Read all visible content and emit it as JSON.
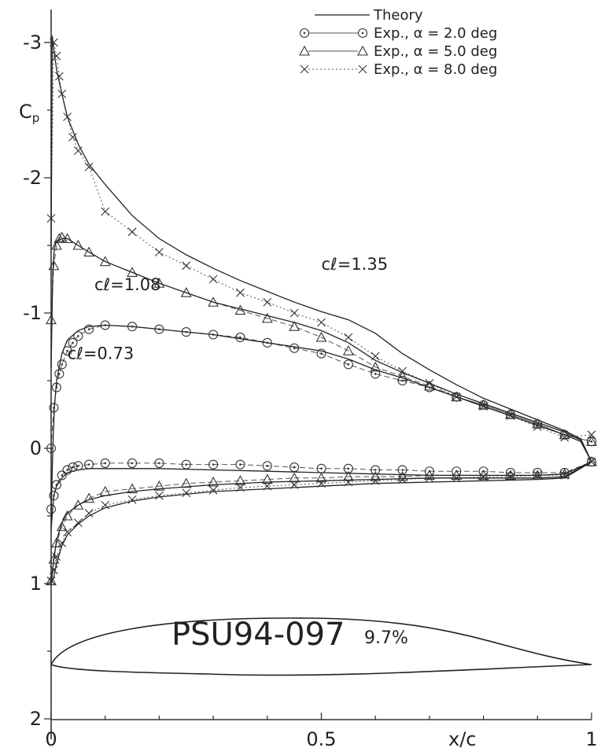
{
  "chart_data": {
    "type": "line",
    "title": "",
    "xlabel": "x/c",
    "ylabel": "Cp",
    "xlim": [
      0,
      1
    ],
    "ylim": [
      -3.1,
      2.0
    ],
    "y_inverted": true,
    "grid": false,
    "legend_position": "top-right",
    "x_ticks": [
      "0",
      "0.5",
      "1"
    ],
    "y_ticks": [
      "-3",
      "-2",
      "-1",
      "0",
      "1",
      "2"
    ],
    "legend": [
      {
        "label": "Theory",
        "marker": "none",
        "style": "thin solid"
      },
      {
        "label": "Exp., α = 2.0 deg",
        "marker": "circle",
        "style": "solid"
      },
      {
        "label": "Exp., α = 5.0 deg",
        "marker": "triangle",
        "style": "solid"
      },
      {
        "label": "Exp., α = 8.0 deg",
        "marker": "cross",
        "style": "dotted"
      }
    ],
    "annotations": [
      {
        "text": "cℓ=1.35",
        "x": 0.5,
        "y": -1.32
      },
      {
        "text": "cℓ=1.08",
        "x": 0.08,
        "y": -1.17
      },
      {
        "text": "cℓ=0.73",
        "x": 0.03,
        "y": -0.66
      }
    ],
    "airfoil": {
      "name": "PSU94-097",
      "thickness": "9.7%"
    },
    "series": [
      {
        "name": "Exp., α = 2.0 deg",
        "marker": "circle",
        "line": "solid",
        "upper": {
          "x": [
            0.0,
            0.005,
            0.01,
            0.015,
            0.02,
            0.03,
            0.04,
            0.05,
            0.07,
            0.1,
            0.15,
            0.2,
            0.25,
            0.3,
            0.35,
            0.4,
            0.45,
            0.5,
            0.55,
            0.6,
            0.65,
            0.7,
            0.75,
            0.8,
            0.85,
            0.9,
            0.95,
            1.0
          ],
          "y": [
            0.0,
            -0.3,
            -0.45,
            -0.55,
            -0.62,
            -0.72,
            -0.78,
            -0.83,
            -0.88,
            -0.91,
            -0.9,
            -0.88,
            -0.86,
            -0.84,
            -0.82,
            -0.78,
            -0.74,
            -0.7,
            -0.62,
            -0.55,
            -0.5,
            -0.45,
            -0.38,
            -0.32,
            -0.25,
            -0.18,
            -0.1,
            -0.05
          ]
        },
        "lower": {
          "x": [
            0.0,
            0.005,
            0.01,
            0.02,
            0.03,
            0.04,
            0.05,
            0.07,
            0.1,
            0.15,
            0.2,
            0.25,
            0.3,
            0.35,
            0.4,
            0.45,
            0.5,
            0.55,
            0.6,
            0.65,
            0.7,
            0.75,
            0.8,
            0.85,
            0.9,
            0.95,
            1.0
          ],
          "y": [
            0.45,
            0.35,
            0.27,
            0.2,
            0.16,
            0.14,
            0.13,
            0.12,
            0.11,
            0.11,
            0.11,
            0.12,
            0.12,
            0.12,
            0.13,
            0.14,
            0.15,
            0.15,
            0.16,
            0.16,
            0.17,
            0.17,
            0.17,
            0.18,
            0.18,
            0.18,
            0.1
          ]
        }
      },
      {
        "name": "Exp., α = 5.0 deg",
        "marker": "triangle",
        "line": "solid",
        "upper": {
          "x": [
            0.0,
            0.005,
            0.01,
            0.015,
            0.02,
            0.03,
            0.05,
            0.07,
            0.1,
            0.15,
            0.2,
            0.25,
            0.3,
            0.35,
            0.4,
            0.45,
            0.5,
            0.55,
            0.6,
            0.65,
            0.7,
            0.75,
            0.8,
            0.85,
            0.9,
            0.95,
            1.0
          ],
          "y": [
            -0.95,
            -1.35,
            -1.5,
            -1.55,
            -1.56,
            -1.55,
            -1.5,
            -1.45,
            -1.38,
            -1.3,
            -1.22,
            -1.15,
            -1.08,
            -1.02,
            -0.96,
            -0.9,
            -0.82,
            -0.72,
            -0.6,
            -0.53,
            -0.46,
            -0.38,
            -0.32,
            -0.25,
            -0.18,
            -0.1,
            -0.05
          ]
        },
        "lower": {
          "x": [
            0.0,
            0.005,
            0.01,
            0.02,
            0.03,
            0.05,
            0.07,
            0.1,
            0.15,
            0.2,
            0.25,
            0.3,
            0.35,
            0.4,
            0.45,
            0.5,
            0.55,
            0.6,
            0.65,
            0.7,
            0.75,
            0.8,
            0.85,
            0.9,
            0.95,
            1.0
          ],
          "y": [
            0.98,
            0.82,
            0.7,
            0.58,
            0.5,
            0.42,
            0.37,
            0.32,
            0.3,
            0.28,
            0.26,
            0.25,
            0.24,
            0.23,
            0.22,
            0.22,
            0.21,
            0.21,
            0.21,
            0.2,
            0.2,
            0.2,
            0.2,
            0.2,
            0.19,
            0.1
          ]
        }
      },
      {
        "name": "Exp., α = 8.0 deg",
        "marker": "cross",
        "line": "dotted",
        "upper": {
          "x": [
            0.0,
            0.005,
            0.01,
            0.015,
            0.02,
            0.03,
            0.04,
            0.05,
            0.07,
            0.1,
            0.15,
            0.2,
            0.25,
            0.3,
            0.35,
            0.4,
            0.45,
            0.5,
            0.55,
            0.6,
            0.65,
            0.7,
            0.75,
            0.8,
            0.85,
            0.9,
            0.95,
            1.0
          ],
          "y": [
            -1.7,
            -3.0,
            -2.9,
            -2.75,
            -2.62,
            -2.45,
            -2.3,
            -2.2,
            -2.08,
            -1.75,
            -1.6,
            -1.45,
            -1.35,
            -1.25,
            -1.15,
            -1.08,
            -1.0,
            -0.93,
            -0.82,
            -0.68,
            -0.57,
            -0.48,
            -0.38,
            -0.31,
            -0.24,
            -0.16,
            -0.08,
            -0.1
          ]
        },
        "lower": {
          "x": [
            0.0,
            0.005,
            0.01,
            0.02,
            0.03,
            0.05,
            0.07,
            0.1,
            0.15,
            0.2,
            0.25,
            0.3,
            0.35,
            0.4,
            0.45,
            0.5,
            0.55,
            0.6,
            0.65,
            0.7,
            0.75,
            0.8,
            0.85,
            0.9,
            0.95,
            1.0
          ],
          "y": [
            0.98,
            0.9,
            0.8,
            0.7,
            0.62,
            0.55,
            0.48,
            0.42,
            0.38,
            0.35,
            0.33,
            0.31,
            0.29,
            0.28,
            0.27,
            0.26,
            0.25,
            0.24,
            0.23,
            0.22,
            0.22,
            0.21,
            0.21,
            0.2,
            0.2,
            0.1
          ]
        }
      },
      {
        "name": "Theory",
        "marker": "none",
        "line": "thin solid",
        "curves": [
          {
            "x": [
              0.0,
              0.003,
              0.006,
              0.01,
              0.02,
              0.03,
              0.05,
              0.07,
              0.1,
              0.15,
              0.2,
              0.25,
              0.3,
              0.35,
              0.4,
              0.45,
              0.5,
              0.55,
              0.6,
              0.65,
              0.7,
              0.75,
              0.8,
              0.85,
              0.9,
              0.95,
              0.98,
              1.0
            ],
            "y": [
              0.5,
              0.0,
              -0.3,
              -0.5,
              -0.7,
              -0.8,
              -0.87,
              -0.9,
              -0.91,
              -0.9,
              -0.88,
              -0.86,
              -0.84,
              -0.81,
              -0.78,
              -0.75,
              -0.72,
              -0.66,
              -0.58,
              -0.52,
              -0.45,
              -0.38,
              -0.31,
              -0.24,
              -0.17,
              -0.1,
              -0.05,
              0.1
            ]
          },
          {
            "x": [
              0.0,
              0.005,
              0.01,
              0.02,
              0.03,
              0.05,
              0.07,
              0.1,
              0.15,
              0.2,
              0.3,
              0.4,
              0.5,
              0.6,
              0.7,
              0.8,
              0.9,
              0.95,
              1.0
            ],
            "y": [
              0.6,
              0.35,
              0.28,
              0.22,
              0.18,
              0.16,
              0.15,
              0.15,
              0.15,
              0.15,
              0.16,
              0.17,
              0.18,
              0.19,
              0.2,
              0.2,
              0.2,
              0.19,
              0.1
            ]
          },
          {
            "x": [
              0.0,
              0.003,
              0.006,
              0.01,
              0.02,
              0.03,
              0.05,
              0.07,
              0.1,
              0.15,
              0.2,
              0.25,
              0.3,
              0.35,
              0.4,
              0.45,
              0.5,
              0.55,
              0.6,
              0.65,
              0.7,
              0.75,
              0.8,
              0.85,
              0.9,
              0.95,
              0.98,
              1.0
            ],
            "y": [
              -0.6,
              -1.3,
              -1.48,
              -1.53,
              -1.55,
              -1.55,
              -1.5,
              -1.45,
              -1.38,
              -1.3,
              -1.22,
              -1.15,
              -1.08,
              -1.03,
              -0.98,
              -0.93,
              -0.87,
              -0.78,
              -0.65,
              -0.56,
              -0.48,
              -0.4,
              -0.33,
              -0.26,
              -0.19,
              -0.12,
              -0.06,
              0.1
            ]
          },
          {
            "x": [
              0.0,
              0.005,
              0.01,
              0.02,
              0.03,
              0.05,
              0.07,
              0.1,
              0.15,
              0.2,
              0.3,
              0.4,
              0.5,
              0.6,
              0.7,
              0.8,
              0.9,
              0.95,
              1.0
            ],
            "y": [
              1.0,
              0.82,
              0.68,
              0.55,
              0.48,
              0.42,
              0.38,
              0.35,
              0.32,
              0.3,
              0.27,
              0.25,
              0.24,
              0.23,
              0.22,
              0.22,
              0.22,
              0.21,
              0.1
            ]
          },
          {
            "x": [
              0.0,
              0.002,
              0.005,
              0.01,
              0.02,
              0.03,
              0.05,
              0.07,
              0.1,
              0.15,
              0.2,
              0.25,
              0.3,
              0.35,
              0.4,
              0.45,
              0.5,
              0.55,
              0.6,
              0.65,
              0.7,
              0.75,
              0.8,
              0.85,
              0.9,
              0.95,
              0.98,
              1.0
            ],
            "y": [
              -1.5,
              -3.05,
              -2.95,
              -2.8,
              -2.62,
              -2.45,
              -2.25,
              -2.1,
              -1.95,
              -1.72,
              -1.55,
              -1.43,
              -1.33,
              -1.24,
              -1.16,
              -1.08,
              -1.01,
              -0.95,
              -0.85,
              -0.7,
              -0.58,
              -0.47,
              -0.37,
              -0.29,
              -0.21,
              -0.13,
              -0.07,
              0.1
            ]
          },
          {
            "x": [
              0.0,
              0.005,
              0.01,
              0.02,
              0.03,
              0.05,
              0.07,
              0.1,
              0.15,
              0.2,
              0.3,
              0.4,
              0.5,
              0.6,
              0.7,
              0.8,
              0.9,
              0.95,
              1.0
            ],
            "y": [
              1.0,
              0.95,
              0.85,
              0.72,
              0.64,
              0.56,
              0.5,
              0.44,
              0.39,
              0.36,
              0.32,
              0.3,
              0.28,
              0.26,
              0.25,
              0.24,
              0.23,
              0.22,
              0.1
            ]
          }
        ]
      }
    ]
  }
}
